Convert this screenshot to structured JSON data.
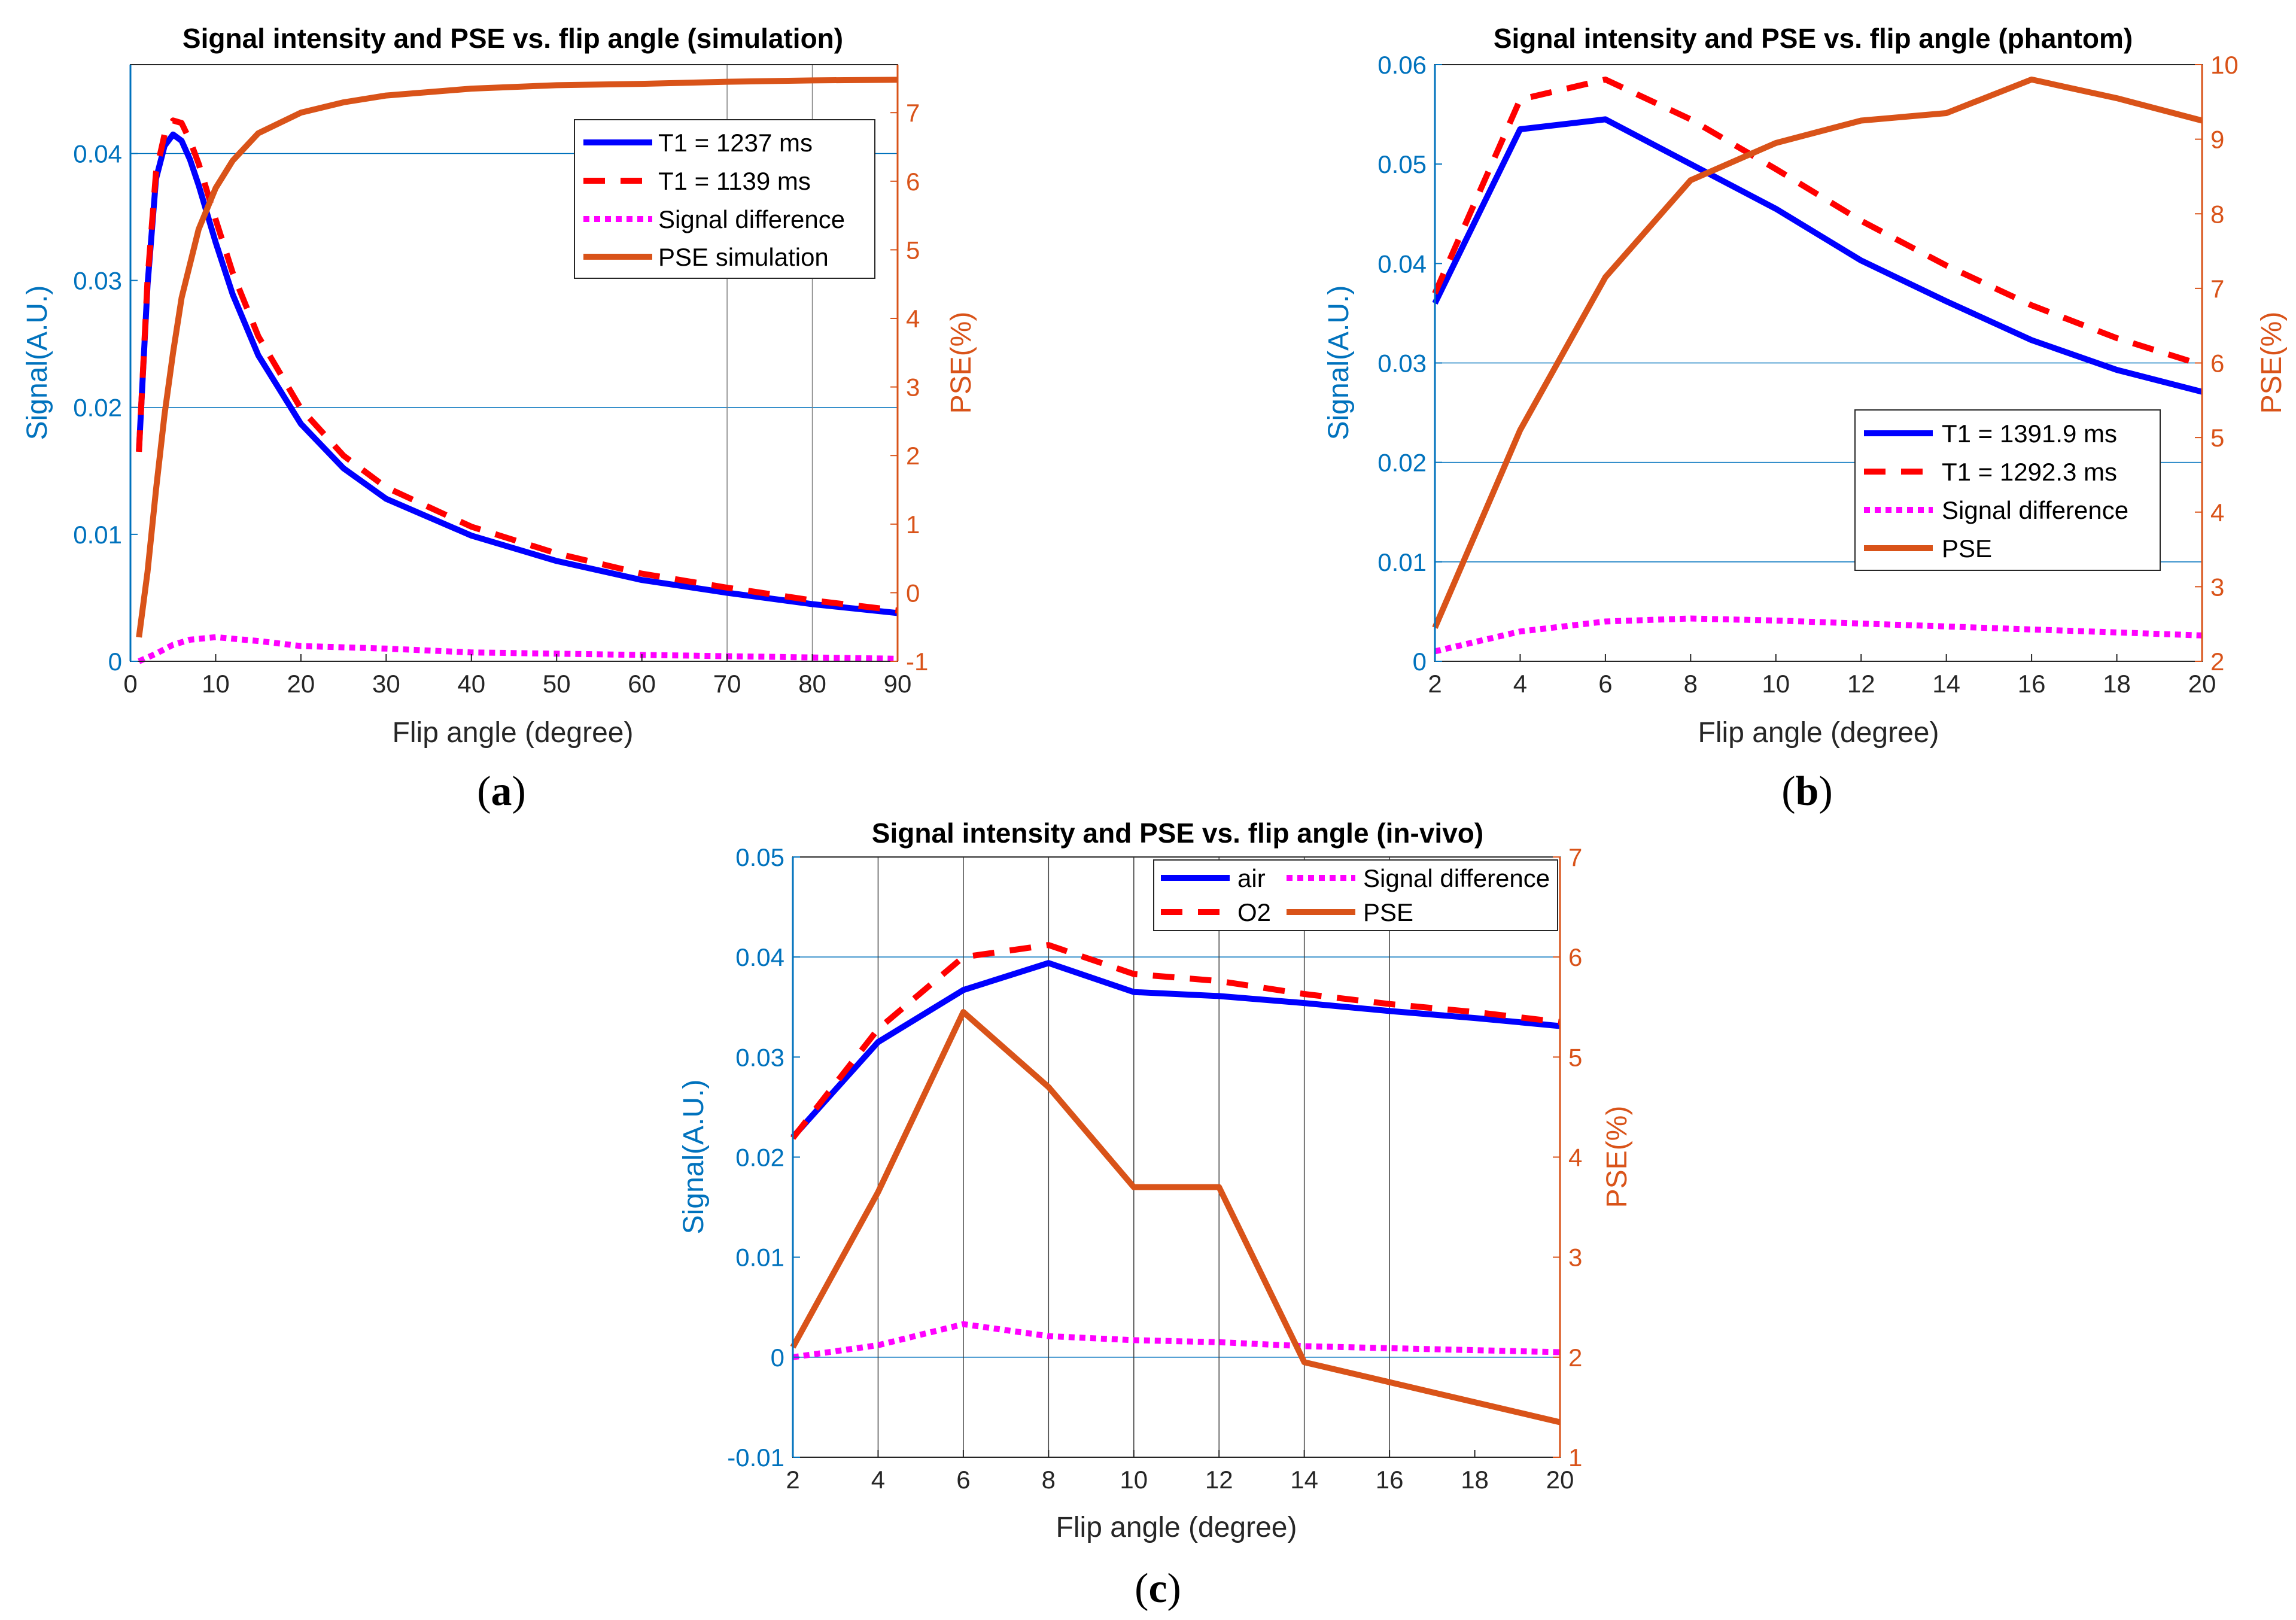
{
  "colors": {
    "left_axis": "#0072BD",
    "right_axis": "#D95319",
    "air": "#0000FF",
    "o2": "#FF0000",
    "diff": "#FF00FF",
    "pse": "#D95319",
    "grid_blue": "#0072BD",
    "grid_gray": "#808080",
    "axis_black": "#262626"
  },
  "figure_labels": [
    "a",
    "b",
    "c"
  ],
  "chart_data": [
    {
      "id": "a",
      "type": "line",
      "title": "Signal intensity and PSE vs. flip angle (simulation)",
      "xlabel": "Flip angle (degree)",
      "ylabel": "Signal(A.U.)",
      "y2label": "PSE(%)",
      "xlim": [
        0,
        90
      ],
      "ylim": [
        0,
        0.047
      ],
      "y2lim": [
        -1,
        7.7
      ],
      "xticks": [
        0,
        10,
        20,
        30,
        40,
        50,
        60,
        70,
        80,
        90
      ],
      "xtick_labels": [
        "0",
        "10",
        "20",
        "30",
        "40",
        "50",
        "60",
        "70",
        "80",
        "90"
      ],
      "yticks": [
        0,
        0.01,
        0.02,
        0.03,
        0.04
      ],
      "ytick_labels": [
        "0",
        "0.01",
        "0.02",
        "0.03",
        "0.04"
      ],
      "y2ticks": [
        -1,
        0,
        1,
        2,
        3,
        4,
        5,
        6,
        7
      ],
      "y2tick_labels": [
        "-1",
        "0",
        "1",
        "2",
        "3",
        "4",
        "5",
        "6",
        "7"
      ],
      "hgrid": [
        0.02,
        0.04
      ],
      "vgrid": [
        70,
        80
      ],
      "legend_position": "top-right",
      "legend_columns": 1,
      "series": [
        {
          "name": "T1 = 1237 ms",
          "style": "solid",
          "color": "#0000FF",
          "axis": "left",
          "x": [
            1,
            2,
            3,
            4,
            5,
            6,
            7,
            8,
            10,
            12,
            15,
            20,
            25,
            30,
            40,
            50,
            60,
            70,
            80,
            90
          ],
          "values": [
            0.0166,
            0.0296,
            0.038,
            0.0406,
            0.0415,
            0.041,
            0.0395,
            0.0375,
            0.033,
            0.0289,
            0.0241,
            0.0187,
            0.0152,
            0.0128,
            0.0099,
            0.0079,
            0.0064,
            0.0054,
            0.0045,
            0.0038
          ]
        },
        {
          "name": "T1 = 1139 ms",
          "style": "dashed",
          "color": "#FF0000",
          "axis": "left",
          "x": [
            1,
            2,
            3,
            4,
            5,
            6,
            7,
            8,
            10,
            12,
            15,
            20,
            25,
            30,
            40,
            50,
            60,
            70,
            80,
            90
          ],
          "values": [
            0.0165,
            0.03,
            0.0385,
            0.0415,
            0.0426,
            0.0424,
            0.041,
            0.0392,
            0.0348,
            0.0306,
            0.0256,
            0.0199,
            0.0162,
            0.0137,
            0.0106,
            0.0085,
            0.0069,
            0.0058,
            0.0048,
            0.004
          ]
        },
        {
          "name": "Signal difference",
          "style": "dotted",
          "color": "#FF00FF",
          "axis": "left",
          "x": [
            1,
            3,
            5,
            7,
            10,
            15,
            20,
            30,
            40,
            50,
            60,
            70,
            80,
            90
          ],
          "values": [
            0.0,
            0.0006,
            0.0013,
            0.0017,
            0.0019,
            0.0016,
            0.0012,
            0.001,
            0.0007,
            0.0006,
            0.0005,
            0.0004,
            0.0003,
            0.0002
          ]
        },
        {
          "name": "PSE simulation",
          "style": "solid",
          "color": "#D95319",
          "axis": "right",
          "x": [
            1,
            2,
            3,
            4,
            5,
            6,
            8,
            10,
            12,
            15,
            20,
            25,
            30,
            40,
            50,
            60,
            70,
            80,
            90
          ],
          "values": [
            -0.65,
            0.3,
            1.5,
            2.6,
            3.5,
            4.3,
            5.3,
            5.9,
            6.3,
            6.7,
            7.0,
            7.15,
            7.25,
            7.35,
            7.4,
            7.42,
            7.45,
            7.47,
            7.48
          ]
        }
      ]
    },
    {
      "id": "b",
      "type": "line",
      "title": "Signal intensity and PSE vs. flip angle (phantom)",
      "xlabel": "Flip angle (degree)",
      "ylabel": "Signal(A.U.)",
      "y2label": "PSE(%)",
      "xlim": [
        2,
        20
      ],
      "ylim": [
        0,
        0.06
      ],
      "y2lim": [
        2,
        10
      ],
      "xticks": [
        2,
        4,
        6,
        8,
        10,
        12,
        14,
        16,
        18,
        20
      ],
      "xtick_labels": [
        "2",
        "4",
        "6",
        "8",
        "10",
        "12",
        "14",
        "16",
        "18",
        "20"
      ],
      "yticks": [
        0,
        0.01,
        0.02,
        0.03,
        0.04,
        0.05,
        0.06
      ],
      "ytick_labels": [
        "0",
        "0.01",
        "0.02",
        "0.03",
        "0.04",
        "0.05",
        "0.06"
      ],
      "y2ticks": [
        2,
        3,
        4,
        5,
        6,
        7,
        8,
        9,
        10
      ],
      "y2tick_labels": [
        "2",
        "3",
        "4",
        "5",
        "6",
        "7",
        "8",
        "9",
        "10"
      ],
      "hgrid": [
        0.01,
        0.02,
        0.03
      ],
      "vgrid": [],
      "legend_position": "lower-right",
      "legend_columns": 1,
      "series": [
        {
          "name": "T1 = 1391.9 ms",
          "style": "solid",
          "color": "#0000FF",
          "axis": "left",
          "x": [
            2,
            4,
            6,
            8,
            10,
            12,
            14,
            16,
            18,
            20
          ],
          "values": [
            0.036,
            0.0535,
            0.0545,
            0.05,
            0.0455,
            0.0403,
            0.0362,
            0.0323,
            0.0293,
            0.0271
          ]
        },
        {
          "name": "T1 = 1292.3 ms",
          "style": "dashed",
          "color": "#FF0000",
          "axis": "left",
          "x": [
            2,
            4,
            6,
            8,
            10,
            12,
            14,
            16,
            18,
            20
          ],
          "values": [
            0.037,
            0.0565,
            0.0585,
            0.0545,
            0.0495,
            0.0443,
            0.0398,
            0.0358,
            0.0325,
            0.0298
          ]
        },
        {
          "name": "Signal difference",
          "style": "dotted",
          "color": "#FF00FF",
          "axis": "left",
          "x": [
            2,
            4,
            6,
            8,
            10,
            12,
            14,
            16,
            18,
            20
          ],
          "values": [
            0.001,
            0.003,
            0.004,
            0.0043,
            0.0041,
            0.0038,
            0.0035,
            0.0032,
            0.0029,
            0.0026
          ]
        },
        {
          "name": "PSE",
          "style": "solid",
          "color": "#D95319",
          "axis": "right",
          "x": [
            2,
            4,
            6,
            8,
            10,
            12,
            14,
            16,
            18,
            20
          ],
          "values": [
            2.45,
            5.1,
            7.15,
            8.45,
            8.95,
            9.25,
            9.35,
            9.8,
            9.55,
            9.25
          ]
        }
      ]
    },
    {
      "id": "c",
      "type": "line",
      "title": "Signal intensity and PSE vs. flip angle (in-vivo)",
      "xlabel": "Flip angle (degree)",
      "ylabel": "Signal(A.U.)",
      "y2label": "PSE(%)",
      "xlim": [
        2,
        20
      ],
      "ylim": [
        -0.01,
        0.05
      ],
      "y2lim": [
        1,
        7
      ],
      "xticks": [
        2,
        4,
        6,
        8,
        10,
        12,
        14,
        16,
        18,
        20
      ],
      "xtick_labels": [
        "2",
        "4",
        "6",
        "8",
        "10",
        "12",
        "14",
        "16",
        "18",
        "20"
      ],
      "yticks": [
        -0.01,
        0,
        0.01,
        0.02,
        0.03,
        0.04,
        0.05
      ],
      "ytick_labels": [
        "-0.01",
        "0",
        "0.01",
        "0.02",
        "0.03",
        "0.04",
        "0.05"
      ],
      "y2ticks": [
        1,
        2,
        3,
        4,
        5,
        6,
        7
      ],
      "y2tick_labels": [
        "1",
        "2",
        "3",
        "4",
        "5",
        "6",
        "7"
      ],
      "hgrid": [
        0,
        0.04
      ],
      "vgrid": [
        4,
        6,
        8,
        10,
        12,
        14,
        16
      ],
      "legend_position": "top-right",
      "legend_columns": 2,
      "series": [
        {
          "name": "air",
          "style": "solid",
          "color": "#0000FF",
          "axis": "left",
          "x": [
            2,
            4,
            6,
            8,
            10,
            12,
            14,
            16,
            18,
            20
          ],
          "values": [
            0.022,
            0.0315,
            0.0367,
            0.0394,
            0.0365,
            0.0361,
            0.0354,
            0.0346,
            0.0339,
            0.0331
          ]
        },
        {
          "name": "O2",
          "style": "dashed",
          "color": "#FF0000",
          "axis": "left",
          "x": [
            2,
            4,
            6,
            8,
            10,
            12,
            14,
            16,
            18,
            20
          ],
          "values": [
            0.0219,
            0.0328,
            0.04,
            0.0412,
            0.0383,
            0.0376,
            0.0363,
            0.0353,
            0.0345,
            0.0335
          ]
        },
        {
          "name": "Signal difference",
          "style": "dotted",
          "color": "#FF00FF",
          "axis": "left",
          "x": [
            2,
            4,
            6,
            8,
            10,
            12,
            14,
            16,
            18,
            20
          ],
          "values": [
            0.0,
            0.0012,
            0.0033,
            0.0021,
            0.0017,
            0.0015,
            0.0011,
            0.0009,
            0.0007,
            0.0005
          ]
        },
        {
          "name": "PSE",
          "style": "solid",
          "color": "#D95319",
          "axis": "right",
          "x": [
            2,
            4,
            6,
            8,
            10,
            12,
            14,
            16,
            18,
            20
          ],
          "values": [
            2.1,
            3.65,
            5.45,
            4.7,
            3.7,
            3.7,
            1.95,
            1.75,
            1.55,
            1.35
          ]
        }
      ]
    }
  ]
}
